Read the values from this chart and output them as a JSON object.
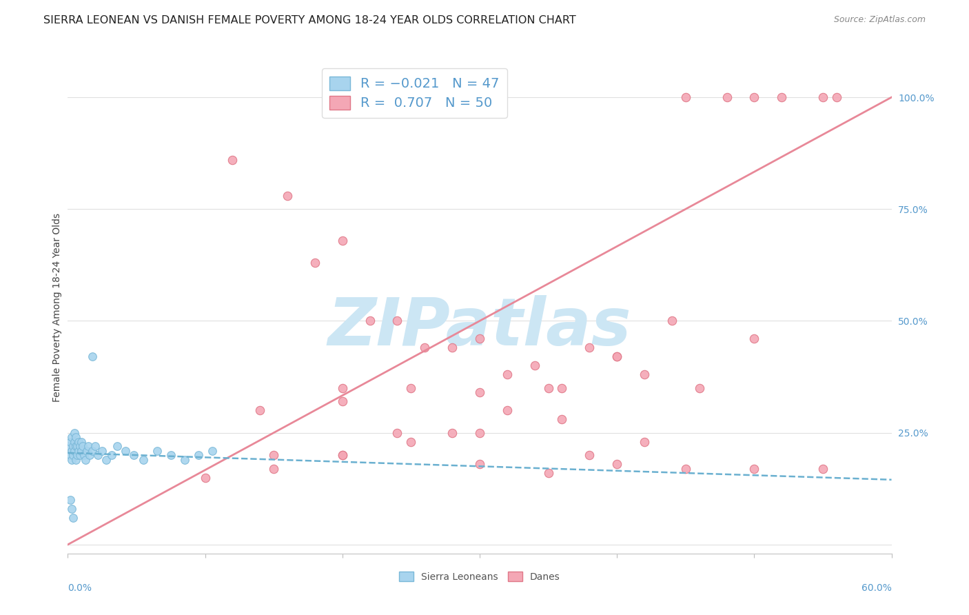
{
  "title": "SIERRA LEONEAN VS DANISH FEMALE POVERTY AMONG 18-24 YEAR OLDS CORRELATION CHART",
  "source": "Source: ZipAtlas.com",
  "ylabel": "Female Poverty Among 18-24 Year Olds",
  "ytick_values": [
    0.0,
    0.25,
    0.5,
    0.75,
    1.0
  ],
  "ytick_labels": [
    "",
    "25.0%",
    "50.0%",
    "75.0%",
    "100.0%"
  ],
  "xlim": [
    0.0,
    0.6
  ],
  "ylim": [
    -0.02,
    1.08
  ],
  "sl_color": "#a8d4ee",
  "sl_edge_color": "#7ab8d8",
  "danes_color": "#f4a7b5",
  "danes_edge_color": "#e07888",
  "sl_line_color": "#6ab0d0",
  "danes_line_color": "#e88898",
  "watermark": "ZIPatlas",
  "watermark_color": "#cce6f4",
  "background_color": "#ffffff",
  "grid_color": "#e0e0e0",
  "title_fontsize": 11.5,
  "axis_label_fontsize": 10,
  "tick_fontsize": 10,
  "legend_fontsize": 14,
  "right_tick_color": "#5599cc",
  "bottom_tick_color": "#5599cc",
  "sl_points_x": [
    0.001,
    0.002,
    0.002,
    0.003,
    0.003,
    0.003,
    0.004,
    0.004,
    0.005,
    0.005,
    0.005,
    0.006,
    0.006,
    0.006,
    0.007,
    0.007,
    0.008,
    0.008,
    0.009,
    0.009,
    0.01,
    0.01,
    0.011,
    0.012,
    0.013,
    0.014,
    0.015,
    0.016,
    0.018,
    0.02,
    0.022,
    0.025,
    0.028,
    0.032,
    0.036,
    0.042,
    0.048,
    0.055,
    0.065,
    0.075,
    0.085,
    0.095,
    0.105,
    0.002,
    0.003,
    0.004,
    0.018
  ],
  "sl_points_y": [
    0.22,
    0.23,
    0.2,
    0.19,
    0.21,
    0.24,
    0.2,
    0.22,
    0.21,
    0.23,
    0.25,
    0.19,
    0.22,
    0.24,
    0.2,
    0.22,
    0.21,
    0.23,
    0.2,
    0.22,
    0.21,
    0.23,
    0.22,
    0.2,
    0.19,
    0.21,
    0.22,
    0.2,
    0.21,
    0.22,
    0.2,
    0.21,
    0.19,
    0.2,
    0.22,
    0.21,
    0.2,
    0.19,
    0.21,
    0.2,
    0.19,
    0.2,
    0.21,
    0.1,
    0.08,
    0.06,
    0.42
  ],
  "danes_points_x": [
    0.12,
    0.16,
    0.2,
    0.24,
    0.28,
    0.32,
    0.36,
    0.4,
    0.44,
    0.48,
    0.52,
    0.56,
    0.45,
    0.5,
    0.55,
    0.18,
    0.22,
    0.26,
    0.3,
    0.34,
    0.38,
    0.14,
    0.2,
    0.25,
    0.3,
    0.35,
    0.4,
    0.15,
    0.2,
    0.24,
    0.28,
    0.32,
    0.36,
    0.42,
    0.46,
    0.5,
    0.1,
    0.15,
    0.2,
    0.25,
    0.3,
    0.35,
    0.4,
    0.45,
    0.5,
    0.55,
    0.38,
    0.42,
    0.2,
    0.3
  ],
  "danes_points_y": [
    0.86,
    0.78,
    0.68,
    0.5,
    0.44,
    0.38,
    0.35,
    0.42,
    0.5,
    1.0,
    1.0,
    1.0,
    1.0,
    1.0,
    1.0,
    0.63,
    0.5,
    0.44,
    0.46,
    0.4,
    0.44,
    0.3,
    0.35,
    0.35,
    0.34,
    0.35,
    0.42,
    0.2,
    0.2,
    0.25,
    0.25,
    0.3,
    0.28,
    0.38,
    0.35,
    0.46,
    0.15,
    0.17,
    0.2,
    0.23,
    0.18,
    0.16,
    0.18,
    0.17,
    0.17,
    0.17,
    0.2,
    0.23,
    0.32,
    0.25
  ]
}
